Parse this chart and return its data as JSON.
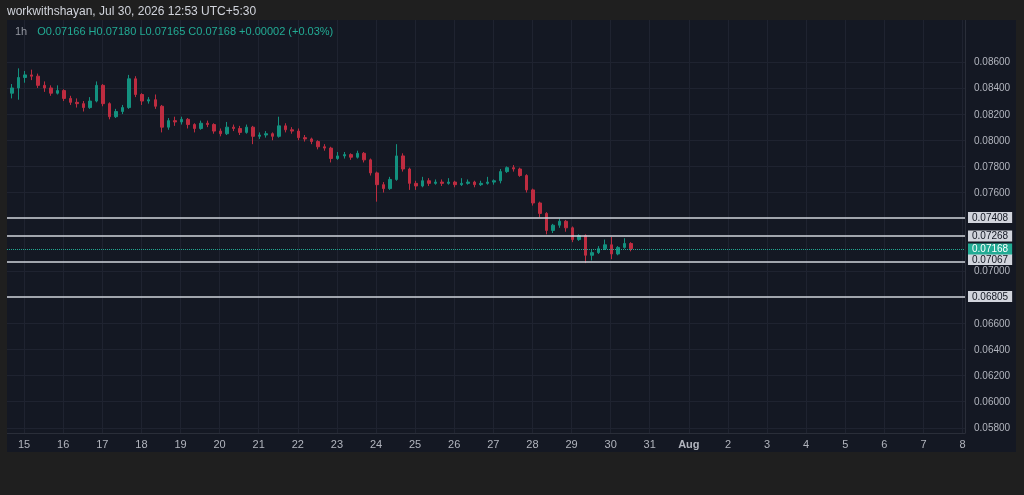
{
  "chart_data": {
    "type": "candlestick",
    "title": "1h",
    "subtitle": "O0.07166 H0.07180 L0.07165 C0.07168 +0.00002 (+0.03%)",
    "annotations": [
      "workwithshayan, Jul 30, 2026 12:53 UTC+5:30"
    ],
    "x": [
      "2026-07-14T16:30",
      "2026-07-14T20:30",
      "2026-07-15T00:30",
      "2026-07-15T04:30",
      "2026-07-15T08:30",
      "2026-07-15T12:30",
      "2026-07-15T16:30",
      "2026-07-15T20:30",
      "2026-07-16T00:30",
      "2026-07-16T04:30",
      "2026-07-16T08:30",
      "2026-07-16T12:30",
      "2026-07-16T16:30",
      "2026-07-16T20:30",
      "2026-07-17T00:30",
      "2026-07-17T04:30",
      "2026-07-17T08:30",
      "2026-07-17T12:30",
      "2026-07-17T16:30",
      "2026-07-17T20:30",
      "2026-07-18T00:30",
      "2026-07-18T04:30",
      "2026-07-18T08:30",
      "2026-07-18T12:30",
      "2026-07-18T16:30",
      "2026-07-18T20:30",
      "2026-07-19T00:30",
      "2026-07-19T04:30",
      "2026-07-19T08:30",
      "2026-07-19T12:30",
      "2026-07-19T16:30",
      "2026-07-19T20:30",
      "2026-07-20T00:30",
      "2026-07-20T04:30",
      "2026-07-20T08:30",
      "2026-07-20T12:30",
      "2026-07-20T16:30",
      "2026-07-20T20:30",
      "2026-07-21T00:30",
      "2026-07-21T04:30",
      "2026-07-21T08:30",
      "2026-07-21T12:30",
      "2026-07-21T16:30",
      "2026-07-21T20:30",
      "2026-07-22T00:30",
      "2026-07-22T04:30",
      "2026-07-22T08:30",
      "2026-07-22T12:30",
      "2026-07-22T16:30",
      "2026-07-22T20:30",
      "2026-07-23T00:30",
      "2026-07-23T04:30",
      "2026-07-23T08:30",
      "2026-07-23T12:30",
      "2026-07-23T16:30",
      "2026-07-23T20:30",
      "2026-07-24T00:30",
      "2026-07-24T04:30",
      "2026-07-24T08:30",
      "2026-07-24T12:30",
      "2026-07-24T16:30",
      "2026-07-24T20:30",
      "2026-07-25T00:30",
      "2026-07-25T04:30",
      "2026-07-25T08:30",
      "2026-07-25T12:30",
      "2026-07-25T16:30",
      "2026-07-25T20:30",
      "2026-07-26T00:30",
      "2026-07-26T04:30",
      "2026-07-26T08:30",
      "2026-07-26T12:30",
      "2026-07-26T16:30",
      "2026-07-26T20:30",
      "2026-07-27T00:30",
      "2026-07-27T04:30",
      "2026-07-27T08:30",
      "2026-07-27T12:30",
      "2026-07-27T16:30",
      "2026-07-27T20:30",
      "2026-07-28T00:30",
      "2026-07-28T04:30",
      "2026-07-28T08:30",
      "2026-07-28T12:30",
      "2026-07-28T16:30",
      "2026-07-28T20:30",
      "2026-07-29T00:30",
      "2026-07-29T04:30",
      "2026-07-29T08:30",
      "2026-07-29T12:30",
      "2026-07-29T16:30",
      "2026-07-29T20:30",
      "2026-07-30T00:30",
      "2026-07-30T04:30",
      "2026-07-30T08:30",
      "2026-07-30T12:30"
    ],
    "ohlc": [
      [
        0.0836,
        0.0843,
        0.0832,
        0.084
      ],
      [
        0.084,
        0.0855,
        0.0831,
        0.0848
      ],
      [
        0.0848,
        0.0853,
        0.0844,
        0.085
      ],
      [
        0.085,
        0.0854,
        0.0846,
        0.0849
      ],
      [
        0.0849,
        0.0851,
        0.084,
        0.0842
      ],
      [
        0.0842,
        0.0845,
        0.0837,
        0.084
      ],
      [
        0.084,
        0.0842,
        0.0834,
        0.0836
      ],
      [
        0.0836,
        0.0842,
        0.0835,
        0.0838
      ],
      [
        0.0838,
        0.0839,
        0.083,
        0.0832
      ],
      [
        0.0832,
        0.0834,
        0.0827,
        0.0829
      ],
      [
        0.0829,
        0.0832,
        0.0825,
        0.0828
      ],
      [
        0.0828,
        0.083,
        0.0822,
        0.0825
      ],
      [
        0.0825,
        0.0833,
        0.0824,
        0.083
      ],
      [
        0.083,
        0.0845,
        0.0829,
        0.0842
      ],
      [
        0.0842,
        0.0843,
        0.0826,
        0.0828
      ],
      [
        0.0828,
        0.0829,
        0.0816,
        0.0818
      ],
      [
        0.0818,
        0.0824,
        0.0817,
        0.0822
      ],
      [
        0.0822,
        0.0827,
        0.082,
        0.0825
      ],
      [
        0.0825,
        0.085,
        0.0824,
        0.0847
      ],
      [
        0.0847,
        0.0849,
        0.0833,
        0.0835
      ],
      [
        0.0835,
        0.0836,
        0.0827,
        0.083
      ],
      [
        0.083,
        0.0833,
        0.0828,
        0.0831
      ],
      [
        0.0831,
        0.0835,
        0.0824,
        0.0826
      ],
      [
        0.0826,
        0.0827,
        0.0806,
        0.081
      ],
      [
        0.081,
        0.0817,
        0.0808,
        0.0815
      ],
      [
        0.0815,
        0.0818,
        0.0811,
        0.0814
      ],
      [
        0.0814,
        0.0818,
        0.0812,
        0.0816
      ],
      [
        0.0816,
        0.0817,
        0.0809,
        0.0812
      ],
      [
        0.0812,
        0.0813,
        0.0806,
        0.0809
      ],
      [
        0.0809,
        0.0815,
        0.0808,
        0.0813
      ],
      [
        0.0813,
        0.0815,
        0.081,
        0.0812
      ],
      [
        0.0812,
        0.0813,
        0.0805,
        0.0807
      ],
      [
        0.0807,
        0.0809,
        0.0803,
        0.0805
      ],
      [
        0.0805,
        0.0814,
        0.0804,
        0.081
      ],
      [
        0.081,
        0.0812,
        0.0807,
        0.0809
      ],
      [
        0.0809,
        0.0811,
        0.0804,
        0.0806
      ],
      [
        0.0806,
        0.0812,
        0.0805,
        0.081
      ],
      [
        0.081,
        0.0811,
        0.0797,
        0.0803
      ],
      [
        0.0803,
        0.0806,
        0.0801,
        0.0804
      ],
      [
        0.0804,
        0.0807,
        0.0802,
        0.0805
      ],
      [
        0.0805,
        0.0806,
        0.08,
        0.0803
      ],
      [
        0.0803,
        0.0818,
        0.0802,
        0.0811
      ],
      [
        0.0811,
        0.0813,
        0.0806,
        0.0808
      ],
      [
        0.0808,
        0.081,
        0.0805,
        0.0807
      ],
      [
        0.0807,
        0.0809,
        0.08,
        0.0802
      ],
      [
        0.0802,
        0.0804,
        0.0799,
        0.0801
      ],
      [
        0.0801,
        0.0802,
        0.0797,
        0.0799
      ],
      [
        0.0799,
        0.08,
        0.0793,
        0.0795
      ],
      [
        0.0795,
        0.0797,
        0.0792,
        0.0794
      ],
      [
        0.0794,
        0.0795,
        0.0783,
        0.0786
      ],
      [
        0.0786,
        0.0791,
        0.0785,
        0.0788
      ],
      [
        0.0788,
        0.0791,
        0.0786,
        0.0789
      ],
      [
        0.0789,
        0.079,
        0.0785,
        0.0787
      ],
      [
        0.0787,
        0.0792,
        0.0786,
        0.079
      ],
      [
        0.079,
        0.0791,
        0.0783,
        0.0785
      ],
      [
        0.0785,
        0.0786,
        0.0773,
        0.0775
      ],
      [
        0.0775,
        0.0776,
        0.0753,
        0.0766
      ],
      [
        0.0766,
        0.0768,
        0.076,
        0.0763
      ],
      [
        0.0763,
        0.0772,
        0.0762,
        0.077
      ],
      [
        0.077,
        0.0797,
        0.0769,
        0.0788
      ],
      [
        0.0788,
        0.079,
        0.0776,
        0.0778
      ],
      [
        0.0778,
        0.0779,
        0.0762,
        0.0767
      ],
      [
        0.0767,
        0.0769,
        0.0762,
        0.0765
      ],
      [
        0.0765,
        0.0772,
        0.0764,
        0.0769
      ],
      [
        0.0769,
        0.0771,
        0.0765,
        0.0767
      ],
      [
        0.0767,
        0.077,
        0.0766,
        0.0768
      ],
      [
        0.0768,
        0.077,
        0.0765,
        0.0767
      ],
      [
        0.0767,
        0.0771,
        0.0766,
        0.0768
      ],
      [
        0.0768,
        0.0769,
        0.0764,
        0.0766
      ],
      [
        0.0766,
        0.0771,
        0.0765,
        0.0767
      ],
      [
        0.0767,
        0.077,
        0.0766,
        0.0768
      ],
      [
        0.0768,
        0.0769,
        0.0764,
        0.0766
      ],
      [
        0.0766,
        0.0769,
        0.0765,
        0.0767
      ],
      [
        0.0767,
        0.0772,
        0.0766,
        0.0768
      ],
      [
        0.0768,
        0.077,
        0.0766,
        0.0769
      ],
      [
        0.0769,
        0.0778,
        0.0767,
        0.0776
      ],
      [
        0.0776,
        0.078,
        0.0775,
        0.0779
      ],
      [
        0.0779,
        0.0781,
        0.0776,
        0.0778
      ],
      [
        0.0778,
        0.0779,
        0.0772,
        0.0773
      ],
      [
        0.0773,
        0.0774,
        0.076,
        0.0762
      ],
      [
        0.0762,
        0.0763,
        0.075,
        0.0752
      ],
      [
        0.0752,
        0.0753,
        0.0741,
        0.0744
      ],
      [
        0.0744,
        0.0745,
        0.0728,
        0.0731
      ],
      [
        0.0731,
        0.0736,
        0.0729,
        0.0735
      ],
      [
        0.0735,
        0.074,
        0.0733,
        0.0738
      ],
      [
        0.0738,
        0.0739,
        0.073,
        0.0733
      ],
      [
        0.0733,
        0.0734,
        0.0722,
        0.0724
      ],
      [
        0.0724,
        0.0728,
        0.0723,
        0.0727
      ],
      [
        0.0727,
        0.0728,
        0.0706,
        0.0712
      ],
      [
        0.0712,
        0.0716,
        0.0708,
        0.0714
      ],
      [
        0.0714,
        0.0719,
        0.0713,
        0.0717
      ],
      [
        0.0717,
        0.0724,
        0.0716,
        0.072
      ],
      [
        0.072,
        0.0726,
        0.0709,
        0.0713
      ],
      [
        0.0713,
        0.0719,
        0.0712,
        0.0718
      ],
      [
        0.0718,
        0.0725,
        0.0717,
        0.0721
      ],
      [
        0.0721,
        0.0722,
        0.0715,
        0.0717
      ]
    ],
    "colors": [
      "#13917f",
      "#13917f",
      "#13917f",
      "#bd2c40",
      "#bd2c40",
      "#bd2c40",
      "#bd2c40",
      "#13917f",
      "#bd2c40",
      "#bd2c40",
      "#bd2c40",
      "#bd2c40",
      "#13917f",
      "#13917f",
      "#bd2c40",
      "#bd2c40",
      "#13917f",
      "#13917f",
      "#13917f",
      "#bd2c40",
      "#bd2c40",
      "#13917f",
      "#bd2c40",
      "#bd2c40",
      "#13917f",
      "#bd2c40",
      "#13917f",
      "#bd2c40",
      "#bd2c40",
      "#13917f",
      "#bd2c40",
      "#bd2c40",
      "#bd2c40",
      "#13917f",
      "#bd2c40",
      "#bd2c40",
      "#13917f",
      "#bd2c40",
      "#13917f",
      "#13917f",
      "#bd2c40",
      "#13917f",
      "#bd2c40",
      "#bd2c40",
      "#bd2c40",
      "#bd2c40",
      "#bd2c40",
      "#bd2c40",
      "#bd2c40",
      "#bd2c40",
      "#13917f",
      "#13917f",
      "#bd2c40",
      "#13917f",
      "#bd2c40",
      "#bd2c40",
      "#bd2c40",
      "#bd2c40",
      "#13917f",
      "#13917f",
      "#bd2c40",
      "#bd2c40",
      "#bd2c40",
      "#13917f",
      "#bd2c40",
      "#13917f",
      "#bd2c40",
      "#13917f",
      "#bd2c40",
      "#13917f",
      "#13917f",
      "#bd2c40",
      "#13917f",
      "#13917f",
      "#13917f",
      "#13917f",
      "#13917f",
      "#bd2c40",
      "#bd2c40",
      "#bd2c40",
      "#bd2c40",
      "#bd2c40",
      "#bd2c40",
      "#13917f",
      "#13917f",
      "#bd2c40",
      "#bd2c40",
      "#13917f",
      "#bd2c40",
      "#13917f",
      "#13917f",
      "#13917f",
      "#bd2c40",
      "#13917f",
      "#13917f",
      "#bd2c40"
    ],
    "xlim": [
      "2026-07-14T13:30",
      "2026-08-08T01:30"
    ],
    "xticks": [
      {
        "value": "2026-07-15",
        "label": "15"
      },
      {
        "value": "2026-07-16",
        "label": "16"
      },
      {
        "value": "2026-07-17",
        "label": "17"
      },
      {
        "value": "2026-07-18",
        "label": "18"
      },
      {
        "value": "2026-07-19",
        "label": "19"
      },
      {
        "value": "2026-07-20",
        "label": "20"
      },
      {
        "value": "2026-07-21",
        "label": "21"
      },
      {
        "value": "2026-07-22",
        "label": "22"
      },
      {
        "value": "2026-07-23",
        "label": "23"
      },
      {
        "value": "2026-07-24",
        "label": "24"
      },
      {
        "value": "2026-07-25",
        "label": "25"
      },
      {
        "value": "2026-07-26",
        "label": "26"
      },
      {
        "value": "2026-07-27",
        "label": "27"
      },
      {
        "value": "2026-07-28",
        "label": "28"
      },
      {
        "value": "2026-07-29",
        "label": "29"
      },
      {
        "value": "2026-07-30",
        "label": "30"
      },
      {
        "value": "2026-07-31",
        "label": "31"
      },
      {
        "value": "2026-08-01",
        "label": "Aug"
      },
      {
        "value": "2026-08-02",
        "label": "2"
      },
      {
        "value": "2026-08-03",
        "label": "3"
      },
      {
        "value": "2026-08-04",
        "label": "4"
      },
      {
        "value": "2026-08-05",
        "label": "5"
      },
      {
        "value": "2026-08-06",
        "label": "6"
      },
      {
        "value": "2026-08-07",
        "label": "7"
      },
      {
        "value": "2026-08-08",
        "label": "8"
      }
    ],
    "ylim": [
      0.0576,
      0.0892
    ],
    "yticks": [
      {
        "value": 0.058,
        "label": "0.05800"
      },
      {
        "value": 0.06,
        "label": "0.06000"
      },
      {
        "value": 0.062,
        "label": "0.06200"
      },
      {
        "value": 0.064,
        "label": "0.06400"
      },
      {
        "value": 0.066,
        "label": "0.06600"
      },
      {
        "value": 0.07,
        "label": "0.07000"
      },
      {
        "value": 0.076,
        "label": "0.07600"
      },
      {
        "value": 0.078,
        "label": "0.07800"
      },
      {
        "value": 0.08,
        "label": "0.08000"
      },
      {
        "value": 0.082,
        "label": "0.08200"
      },
      {
        "value": 0.084,
        "label": "0.08400"
      },
      {
        "value": 0.086,
        "label": "0.08600"
      }
    ],
    "ref_lines": [
      {
        "axis": "y",
        "value": 0.07408,
        "label": "0.07408",
        "color": "#d1d4dc",
        "line_style": "solid"
      },
      {
        "axis": "y",
        "value": 0.07268,
        "label": "0.07268",
        "color": "#d1d4dc",
        "line_style": "solid"
      },
      {
        "axis": "y",
        "value": 0.07067,
        "label": "0.07067",
        "color": "#d1d4dc",
        "line_style": "solid"
      },
      {
        "axis": "y",
        "value": 0.06805,
        "label": "0.06805",
        "color": "#d1d4dc",
        "line_style": "solid"
      },
      {
        "axis": "y",
        "value": 0.07168,
        "label": "0.07168",
        "color": "#22ab94",
        "line_style": "dotted"
      }
    ],
    "grid": true
  }
}
